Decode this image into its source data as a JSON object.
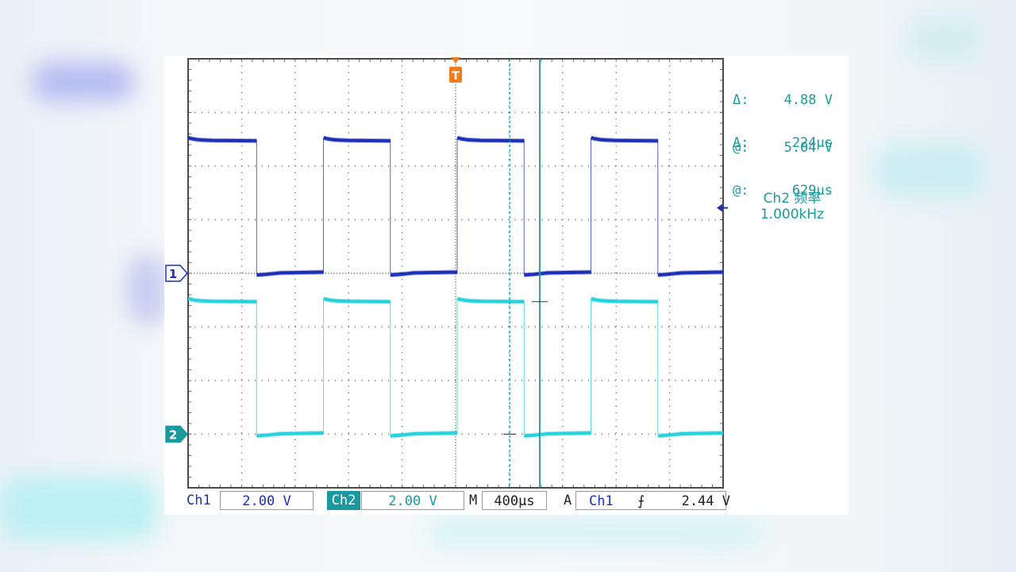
{
  "chart_data": {
    "type": "line",
    "time_per_div_us": 400,
    "x_divisions": 10,
    "y_divisions": 8,
    "xlim_us": [
      0,
      4000
    ],
    "series": [
      {
        "name": "1",
        "color": "#1e2fb8",
        "volts_per_div": 2.0,
        "marker_div": 0,
        "high_div": 2.5,
        "low_div": 0.0,
        "period_us": 1000,
        "first_fall_us": 512,
        "high_width_us": 500,
        "first_high_us": 0
      },
      {
        "name": "2",
        "color": "#27d2dc",
        "volts_per_div": 2.0,
        "marker_div": -3,
        "high_div": 2.5,
        "low_div": 0.0,
        "period_us": 1000,
        "first_fall_us": 512,
        "high_width_us": 500,
        "first_high_us": 0
      }
    ],
    "trigger_marker_label": "T",
    "trigger_time_us": 2000,
    "cursor1_time_us": 2405,
    "cursor2_time_us": 2629
  },
  "readouts": {
    "voltage_delta_label": "Δ:",
    "voltage_delta_value": "4.88 V",
    "voltage_at_label": "@:",
    "voltage_at_value": "5.04 V",
    "time_delta_label": "Δ:",
    "time_delta_value": "224µs",
    "time_at_label": "@:",
    "time_at_value": "629µs"
  },
  "measurement": {
    "label": "Ch2 频率",
    "value": "1.000kHz"
  },
  "status_bar": {
    "ch1_label": "Ch1",
    "ch1_scale": "2.00 V",
    "ch2_label": "Ch2",
    "ch2_scale": "2.00 V",
    "timebase_label": "M",
    "timebase_value": "400µs",
    "trigger_mode": "A",
    "trigger_source": "Ch1",
    "trigger_slope_symbol": "⨍",
    "trigger_level": "2.44 V"
  },
  "colors": {
    "ch1": "#1e2fb8",
    "ch2": "#1a9a9e",
    "ch2_trace": "#27d2dc",
    "trigger": "#f07c1e",
    "grid": "#6a6a6a"
  }
}
